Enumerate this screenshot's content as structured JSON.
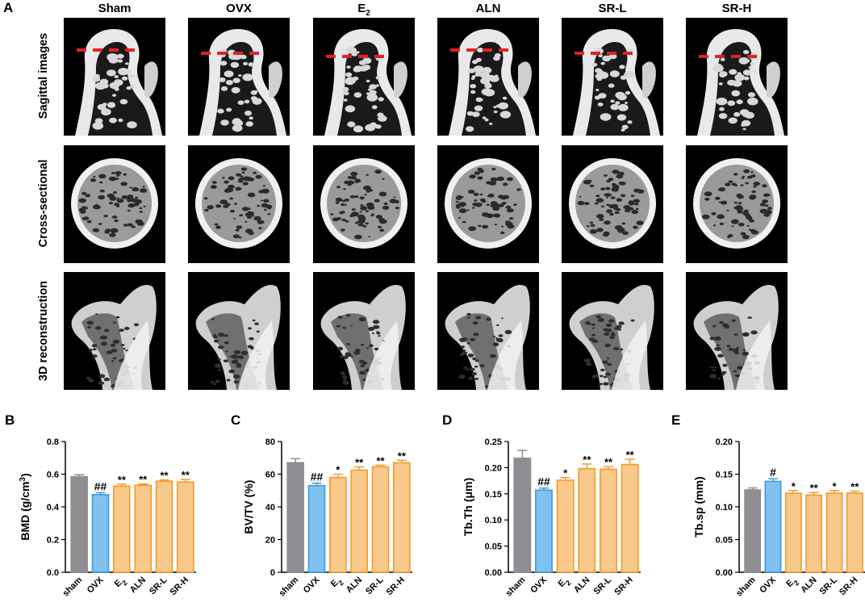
{
  "panel_a": {
    "letter": "A",
    "groups": [
      "Sham",
      "OVX",
      "E",
      "ALN",
      "SR-L",
      "SR-H"
    ],
    "group_sub": {
      "E": "2"
    },
    "rows": [
      "Sagittal images",
      "Cross-sectional",
      "3D reconstruction"
    ]
  },
  "colors": {
    "sham": "#8f8f93",
    "ovx_fill": "#7fc2f2",
    "ovx_edge": "#3d9ad9",
    "treat_fill": "#f8c98a",
    "treat_edge": "#f29a2e",
    "cut_line": "#e3202a"
  },
  "chart_data": [
    {
      "panel": "B",
      "type": "bar",
      "ylabel": "BMD (g/cm",
      "ylabel_sup": "3",
      "ylabel_tail": ")",
      "categories": [
        "sham",
        "OVX",
        "E2",
        "ALN",
        "SR-L",
        "SR-H"
      ],
      "values": [
        0.585,
        0.475,
        0.527,
        0.532,
        0.557,
        0.552
      ],
      "errors": [
        0.012,
        0.012,
        0.012,
        0.008,
        0.008,
        0.015
      ],
      "significance": [
        "",
        "##",
        "**",
        "**",
        "**",
        "**"
      ],
      "ylim": [
        0,
        0.8
      ],
      "yticks": [
        "0.0",
        "0.2",
        "0.4",
        "0.6",
        "0.8"
      ]
    },
    {
      "panel": "C",
      "type": "bar",
      "ylabel": "BV/TV (%)",
      "categories": [
        "sham",
        "OVX",
        "E2",
        "ALN",
        "SR-L",
        "SR-H"
      ],
      "values": [
        67,
        53,
        58,
        62.5,
        64.5,
        67
      ],
      "errors": [
        2.5,
        1.5,
        2.0,
        2.0,
        1.0,
        1.5
      ],
      "significance": [
        "",
        "##",
        "*",
        "**",
        "**",
        "**"
      ],
      "ylim": [
        0,
        80
      ],
      "yticks": [
        "0",
        "20",
        "40",
        "60",
        "80"
      ]
    },
    {
      "panel": "D",
      "type": "bar",
      "ylabel": "Tb.Th (μm)",
      "categories": [
        "sham",
        "OVX",
        "E2",
        "ALN",
        "SR-L",
        "SR-H"
      ],
      "values": [
        0.218,
        0.157,
        0.176,
        0.198,
        0.197,
        0.206
      ],
      "errors": [
        0.015,
        0.004,
        0.005,
        0.009,
        0.005,
        0.01
      ],
      "significance": [
        "",
        "##",
        "*",
        "**",
        "**",
        "**"
      ],
      "ylim": [
        0,
        0.25
      ],
      "yticks": [
        "0.00",
        "0.05",
        "0.10",
        "0.15",
        "0.20",
        "0.25"
      ]
    },
    {
      "panel": "E",
      "type": "bar",
      "ylabel": "Tb.sp (mm)",
      "categories": [
        "sham",
        "OVX",
        "E2",
        "ALN",
        "SR-L",
        "SR-H"
      ],
      "values": [
        0.126,
        0.139,
        0.121,
        0.118,
        0.121,
        0.121
      ],
      "errors": [
        0.003,
        0.004,
        0.004,
        0.004,
        0.004,
        0.003
      ],
      "significance": [
        "",
        "#",
        "*",
        "**",
        "*",
        "**"
      ],
      "ylim": [
        0,
        0.2
      ],
      "yticks": [
        "0.00",
        "0.05",
        "0.10",
        "0.15",
        "0.20"
      ]
    }
  ]
}
